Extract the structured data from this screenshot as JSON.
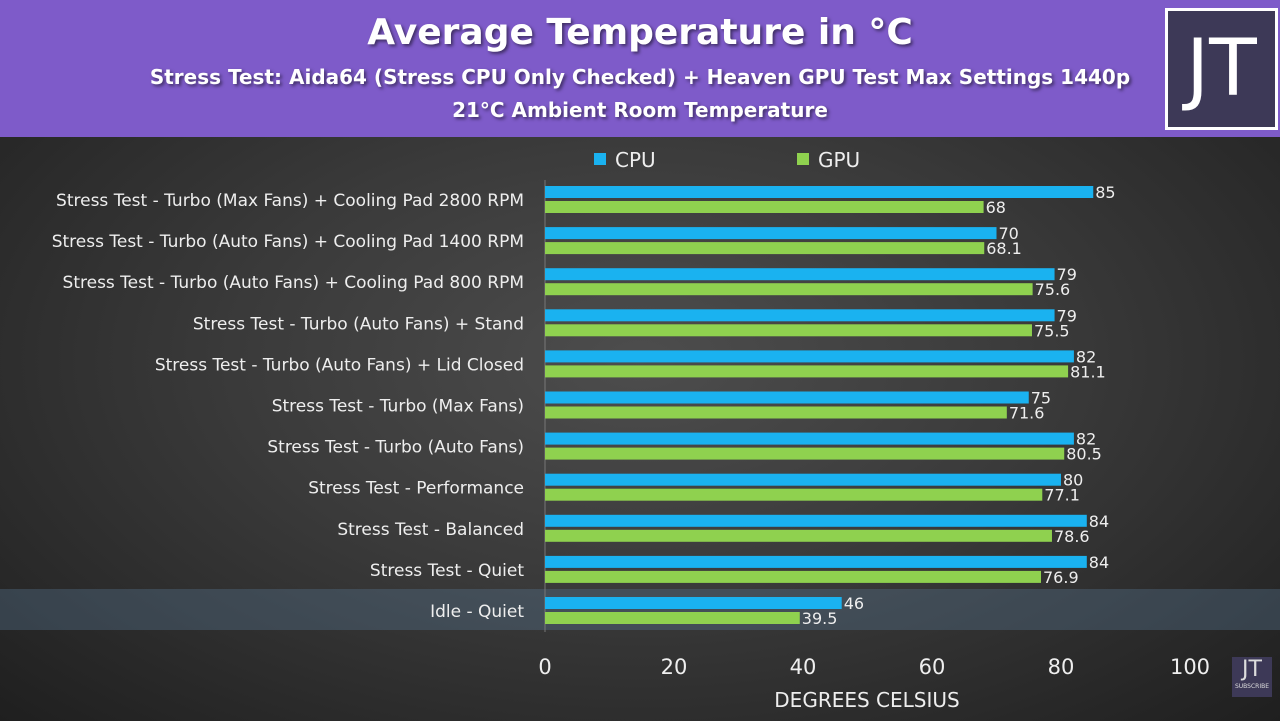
{
  "chart_data": {
    "type": "bar",
    "orientation": "horizontal",
    "title": "Average Temperature in °C",
    "subtitle": [
      "Stress Test: Aida64 (Stress CPU Only Checked) + Heaven GPU Test Max Settings 1440p",
      "21°C Ambient Room Temperature"
    ],
    "xlabel": "DEGREES CELSIUS",
    "xlim": [
      0,
      100
    ],
    "xticks": [
      "0",
      "20",
      "40",
      "60",
      "80",
      "100"
    ],
    "legend_position": "top",
    "grid": false,
    "highlighted_category": "Idle - Quiet",
    "categories": [
      "Stress Test - Turbo (Max Fans) + Cooling Pad 2800 RPM",
      "Stress Test - Turbo (Auto Fans) + Cooling Pad 1400 RPM",
      "Stress Test - Turbo (Auto Fans) + Cooling Pad 800 RPM",
      "Stress Test - Turbo (Auto Fans) + Stand",
      "Stress Test - Turbo (Auto Fans) + Lid Closed",
      "Stress Test - Turbo (Max Fans)",
      "Stress Test - Turbo (Auto Fans)",
      "Stress Test - Performance",
      "Stress Test - Balanced",
      "Stress Test - Quiet",
      "Idle - Quiet"
    ],
    "series": [
      {
        "name": "CPU",
        "color": "#1ab2f0",
        "values": [
          85,
          70,
          79,
          79,
          82,
          75,
          82,
          80,
          84,
          84,
          46
        ]
      },
      {
        "name": "GPU",
        "color": "#8fd14f",
        "values": [
          68,
          68.1,
          75.6,
          75.5,
          81.1,
          71.6,
          80.5,
          77.1,
          78.6,
          76.9,
          39.5
        ]
      }
    ]
  },
  "colors": {
    "header": "#7e5bc9",
    "logo_bg": "#3d3957"
  },
  "logo": {
    "text": "JT",
    "subscribe": "SUBSCRIBE"
  }
}
